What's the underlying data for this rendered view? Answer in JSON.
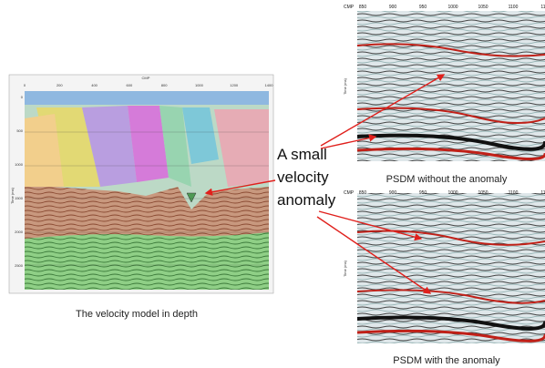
{
  "left_panel": {
    "x_axis_title": "CMP",
    "x_ticks": [
      "0",
      "200",
      "400",
      "600",
      "800",
      "1000",
      "1200",
      "1400"
    ],
    "y_axis_title": "Time (ms)",
    "y_ticks": [
      "0",
      "500",
      "1000",
      "1500",
      "2000",
      "2500"
    ],
    "caption": "The velocity model in depth"
  },
  "top_right_panel": {
    "x_axis_title": "CMP",
    "x_ticks": [
      "850",
      "900",
      "950",
      "1000",
      "1050",
      "1100",
      "11"
    ],
    "y_axis_title": "Time (ms)",
    "caption": "PSDM without the anomaly"
  },
  "bottom_right_panel": {
    "x_axis_title": "CMP",
    "x_ticks": [
      "850",
      "900",
      "950",
      "1000",
      "1050",
      "1100",
      "11"
    ],
    "y_axis_title": "Time (ms)",
    "caption": "PSDM with the anomaly"
  },
  "annotation": {
    "lines": [
      "A small",
      "velocity",
      "anomaly"
    ]
  }
}
